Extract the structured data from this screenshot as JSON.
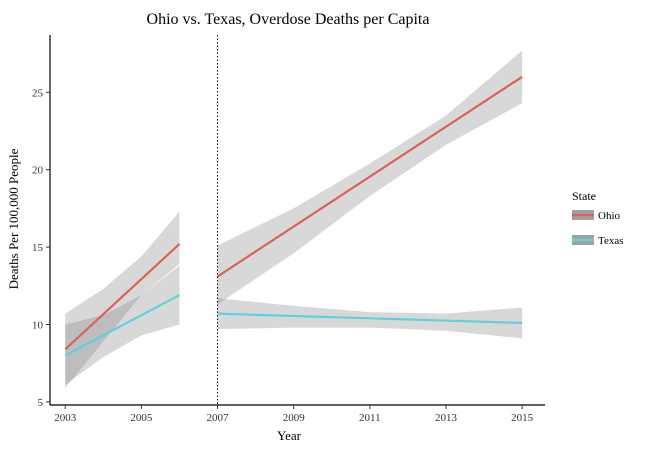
{
  "chart_data": {
    "type": "line",
    "title": "Ohio vs. Texas, Overdose Deaths per Capita",
    "xlabel": "Year",
    "ylabel": "Deaths Per 100,000 People",
    "xlim": [
      2002.6,
      2015.6
    ],
    "ylim": [
      4.8,
      28.7
    ],
    "x_ticks": [
      2003,
      2005,
      2007,
      2009,
      2011,
      2013,
      2015
    ],
    "y_ticks": [
      5,
      10,
      15,
      20,
      25
    ],
    "grid": false,
    "legend": {
      "title": "State",
      "position": "right",
      "entries": [
        {
          "label": "Ohio",
          "color": "#d9635a"
        },
        {
          "label": "Texas",
          "color": "#5fd1dc"
        }
      ]
    },
    "reference_line": {
      "x": 2007,
      "style": "dotted"
    },
    "series": [
      {
        "name": "Ohio",
        "color": "#d9635a",
        "segments": [
          {
            "x": [
              2003,
              2006
            ],
            "y": [
              8.4,
              15.2
            ],
            "band": {
              "x": [
                2003,
                2004,
                2005,
                2006
              ],
              "lower": [
                5.9,
                8.9,
                11.9,
                13.9
              ],
              "upper": [
                10.7,
                12.3,
                14.4,
                17.3
              ]
            }
          },
          {
            "x": [
              2007,
              2015
            ],
            "y": [
              13.1,
              26.0
            ],
            "band": {
              "x": [
                2007,
                2009,
                2011,
                2013,
                2015
              ],
              "lower": [
                11.3,
                14.6,
                18.3,
                21.6,
                24.3
              ],
              "upper": [
                15.1,
                17.5,
                20.4,
                23.5,
                27.7
              ]
            }
          }
        ]
      },
      {
        "name": "Texas",
        "color": "#5fd1dc",
        "segments": [
          {
            "x": [
              2003,
              2006
            ],
            "y": [
              8.0,
              11.9
            ],
            "band": {
              "x": [
                2003,
                2004,
                2005,
                2006
              ],
              "lower": [
                6.1,
                7.9,
                9.3,
                10.0
              ],
              "upper": [
                10.0,
                10.6,
                11.9,
                13.8
              ]
            }
          },
          {
            "x": [
              2007,
              2015
            ],
            "y": [
              10.7,
              10.1
            ],
            "band": {
              "x": [
                2007,
                2009,
                2011,
                2013,
                2015
              ],
              "lower": [
                9.7,
                9.8,
                9.8,
                9.6,
                9.1
              ],
              "upper": [
                11.7,
                11.2,
                10.8,
                10.7,
                11.1
              ]
            }
          }
        ]
      }
    ],
    "band_color": "#7f7f7f"
  }
}
